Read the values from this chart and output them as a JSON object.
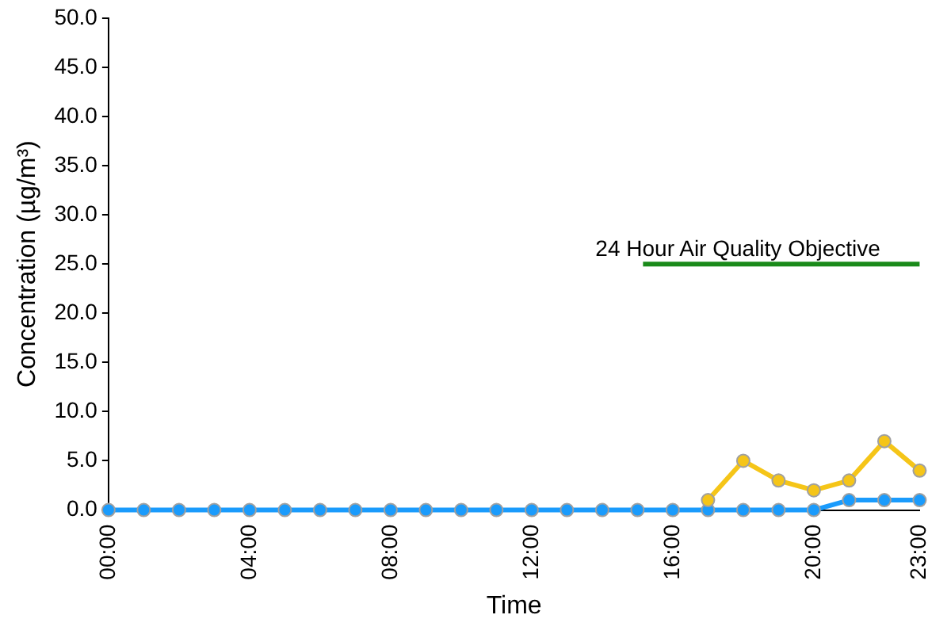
{
  "chart_data": {
    "type": "line",
    "xlabel": "Time",
    "ylabel": "Concentration (µg/m³)",
    "x": [
      0,
      1,
      2,
      3,
      4,
      5,
      6,
      7,
      8,
      9,
      10,
      11,
      12,
      13,
      14,
      15,
      16,
      17,
      18,
      19,
      20,
      21,
      22,
      23
    ],
    "series": [
      {
        "color": "#f5c518",
        "values": [
          null,
          null,
          null,
          null,
          null,
          null,
          null,
          null,
          null,
          null,
          null,
          null,
          null,
          null,
          null,
          null,
          null,
          1,
          5,
          3,
          2,
          3,
          7,
          4
        ]
      },
      {
        "color": "#1a9bfc",
        "values": [
          0,
          0,
          0,
          0,
          0,
          0,
          0,
          0,
          0,
          0,
          0,
          0,
          0,
          0,
          0,
          0,
          0,
          0,
          0,
          0,
          0,
          1,
          1,
          1
        ]
      }
    ],
    "xlim": [
      0,
      23
    ],
    "xticks": [
      {
        "value": 0,
        "label": "00:00"
      },
      {
        "value": 4,
        "label": "04:00"
      },
      {
        "value": 8,
        "label": "08:00"
      },
      {
        "value": 12,
        "label": "12:00"
      },
      {
        "value": 16,
        "label": "16:00"
      },
      {
        "value": 20,
        "label": "20:00"
      },
      {
        "value": 23,
        "label": "23:00"
      }
    ],
    "ylim": [
      0,
      50
    ],
    "yticks": [
      {
        "value": 0,
        "label": "0.0"
      },
      {
        "value": 5,
        "label": "5.0"
      },
      {
        "value": 10,
        "label": "10.0"
      },
      {
        "value": 15,
        "label": "15.0"
      },
      {
        "value": 20,
        "label": "20.0"
      },
      {
        "value": 25,
        "label": "25.0"
      },
      {
        "value": 30,
        "label": "30.0"
      },
      {
        "value": 35,
        "label": "35.0"
      },
      {
        "value": 40,
        "label": "40.0"
      },
      {
        "value": 45,
        "label": "45.0"
      },
      {
        "value": 50,
        "label": "50.0"
      }
    ],
    "ref_lines": [
      {
        "axis": "y",
        "value": 25,
        "label": "24 Hour Air Quality Objective",
        "color": "#1a8a1a"
      }
    ],
    "grid": false,
    "legend": false,
    "marker": "circle"
  }
}
